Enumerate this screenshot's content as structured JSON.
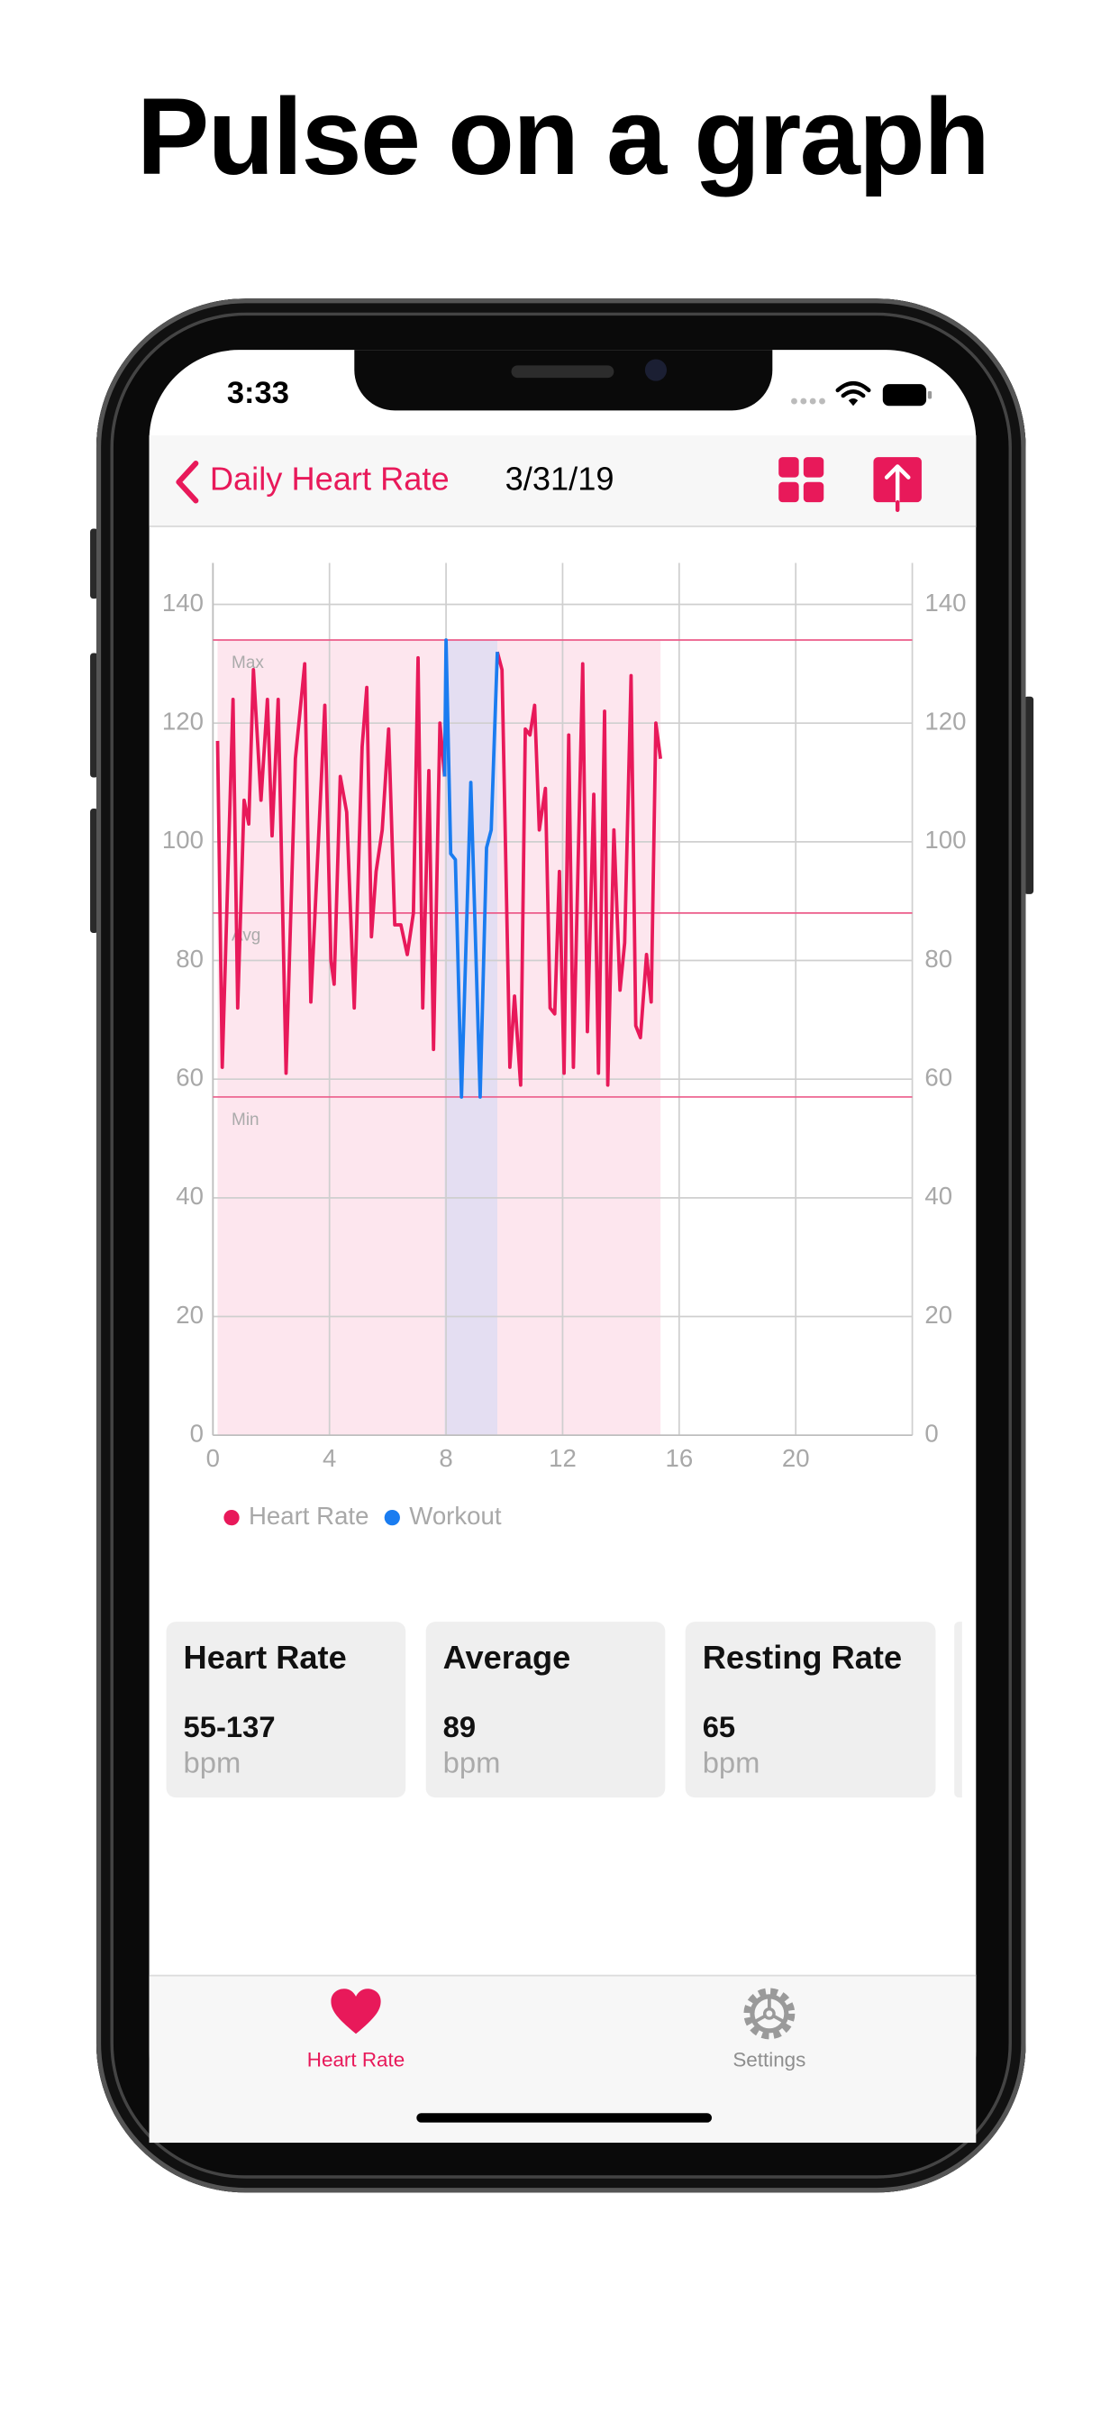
{
  "header": {
    "title": "Pulse on a graph"
  },
  "status": {
    "time": "3:33"
  },
  "nav": {
    "back": "Daily Heart Rate",
    "title": "3/31/19"
  },
  "chart_data": {
    "type": "line",
    "xlim": [
      0,
      24
    ],
    "xticks": [
      0,
      4,
      8,
      12,
      16,
      20
    ],
    "ylim": [
      0,
      147
    ],
    "yticks": [
      0,
      20,
      40,
      60,
      80,
      100,
      120,
      140
    ],
    "y2lim": [
      0,
      147
    ],
    "y2ticks": [
      0,
      20,
      40,
      60,
      80,
      100,
      120,
      140
    ],
    "grid": true,
    "legend": "bottom-left",
    "reference_lines": [
      {
        "label": "Max",
        "value": 134
      },
      {
        "label": "Avg",
        "value": 88
      },
      {
        "label": "Min",
        "value": 57
      }
    ],
    "series": [
      {
        "name": "Heart Rate",
        "color": "#e8195a",
        "x": [
          0.16,
          0.32,
          0.69,
          0.85,
          1.07,
          1.23,
          1.39,
          1.65,
          1.87,
          2.03,
          2.24,
          2.51,
          2.83,
          3.15,
          3.36,
          3.84,
          4.05,
          4.16,
          4.37,
          4.59,
          4.85,
          5.12,
          5.28,
          5.44,
          5.6,
          5.81,
          6.03,
          6.24,
          6.45,
          6.67,
          6.88,
          7.04,
          7.2,
          7.41,
          7.57,
          7.79,
          7.95,
          null,
          9.76,
          9.92,
          10.19,
          10.35,
          10.56,
          10.72,
          10.88,
          11.04,
          11.2,
          11.41,
          11.57,
          11.73,
          11.89,
          12.05,
          12.21,
          12.37,
          12.69,
          12.85,
          13.07,
          13.23,
          13.44,
          13.55,
          13.76,
          13.97,
          14.13,
          14.35,
          14.51,
          14.67,
          14.88,
          15.04,
          15.2,
          15.36
        ],
        "values": [
          117,
          62,
          124,
          72,
          107,
          103,
          129,
          107,
          124,
          101,
          124,
          61,
          114,
          130,
          73,
          123,
          80,
          76,
          111,
          105,
          72,
          116,
          126,
          84,
          95,
          102,
          119,
          86,
          86,
          81,
          88,
          131,
          72,
          112,
          65,
          120,
          111,
          null,
          132,
          129,
          62,
          74,
          59,
          119,
          118,
          123,
          102,
          109,
          72,
          71,
          95,
          61,
          118,
          62,
          130,
          68,
          108,
          61,
          122,
          59,
          102,
          75,
          83,
          128,
          69,
          67,
          81,
          73,
          120,
          114
        ]
      },
      {
        "name": "Workout",
        "color": "#1a7cf0",
        "x": [
          7.95,
          8.0,
          8.16,
          8.32,
          8.53,
          8.85,
          9.17,
          9.39,
          9.55,
          9.76
        ],
        "values": [
          111,
          134,
          98,
          97,
          57,
          110,
          57,
          99,
          102,
          132
        ]
      }
    ]
  },
  "cards": [
    {
      "title": "Heart Rate",
      "value": "55-137",
      "unit": "bpm"
    },
    {
      "title": "Average",
      "value": "89",
      "unit": "bpm"
    },
    {
      "title": "Resting Rate",
      "value": "65",
      "unit": "bpm"
    }
  ],
  "tabs": [
    "Heart Rate",
    "Settings"
  ]
}
